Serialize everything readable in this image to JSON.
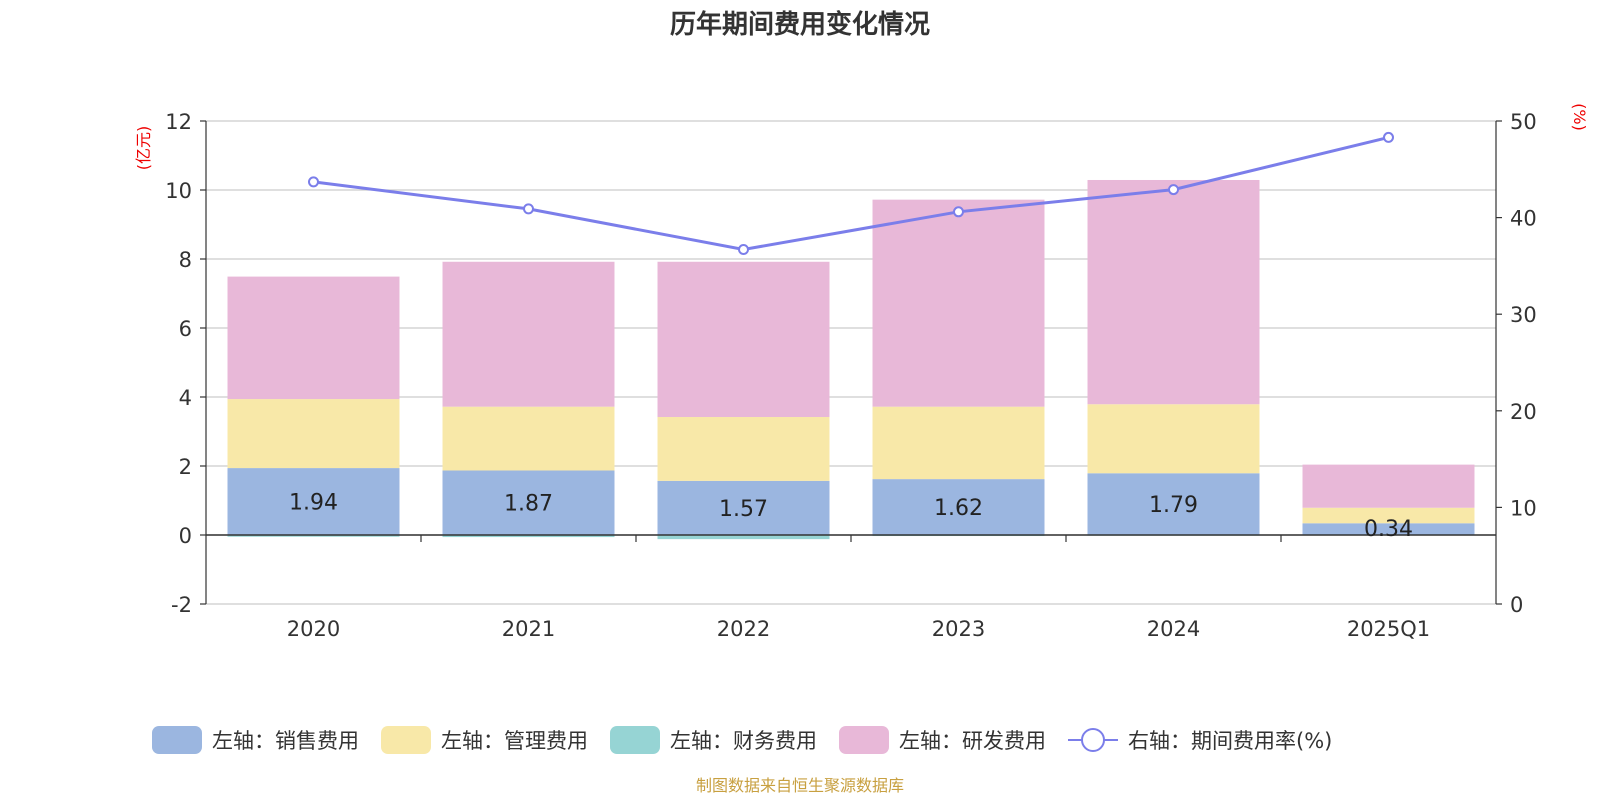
{
  "chart_data": {
    "type": "bar",
    "stacked": true,
    "title": "历年期间费用变化情况",
    "categories": [
      "2020",
      "2021",
      "2022",
      "2023",
      "2024",
      "2025Q1"
    ],
    "left_axis": {
      "unit_label": "(亿元)",
      "min": -2,
      "max": 12,
      "ticks": [
        "-2",
        "0",
        "2",
        "4",
        "6",
        "8",
        "10",
        "12"
      ]
    },
    "right_axis": {
      "unit_label": "(%)",
      "min": 0,
      "max": 50,
      "ticks": [
        "0",
        "10",
        "20",
        "30",
        "40",
        "50"
      ]
    },
    "series": [
      {
        "name": "左轴：销售费用",
        "axis": "left",
        "color": "#9bb6e0",
        "values": [
          1.94,
          1.87,
          1.57,
          1.62,
          1.79,
          0.34
        ],
        "labels": [
          "1.94",
          "1.87",
          "1.57",
          "1.62",
          "1.79",
          "0.34"
        ]
      },
      {
        "name": "左轴：管理费用",
        "axis": "left",
        "color": "#f8e8a8",
        "values": [
          2.0,
          1.85,
          1.85,
          2.1,
          2.0,
          0.45
        ]
      },
      {
        "name": "左轴：财务费用",
        "axis": "left",
        "color": "#96d4d4",
        "values": [
          -0.05,
          -0.06,
          -0.12,
          -0.03,
          -0.02,
          -0.01
        ]
      },
      {
        "name": "左轴：研发费用",
        "axis": "left",
        "color": "#e8b8d8",
        "values": [
          3.55,
          4.2,
          4.5,
          6.0,
          6.5,
          1.25
        ]
      },
      {
        "name": "右轴：期间费用率(%)",
        "axis": "right",
        "type": "line",
        "color": "#7b7eea",
        "values": [
          43.7,
          40.9,
          36.7,
          40.6,
          42.9,
          48.3
        ]
      }
    ],
    "grid": true,
    "legend_position": "bottom"
  },
  "source": "制图数据来自恒生聚源数据库"
}
